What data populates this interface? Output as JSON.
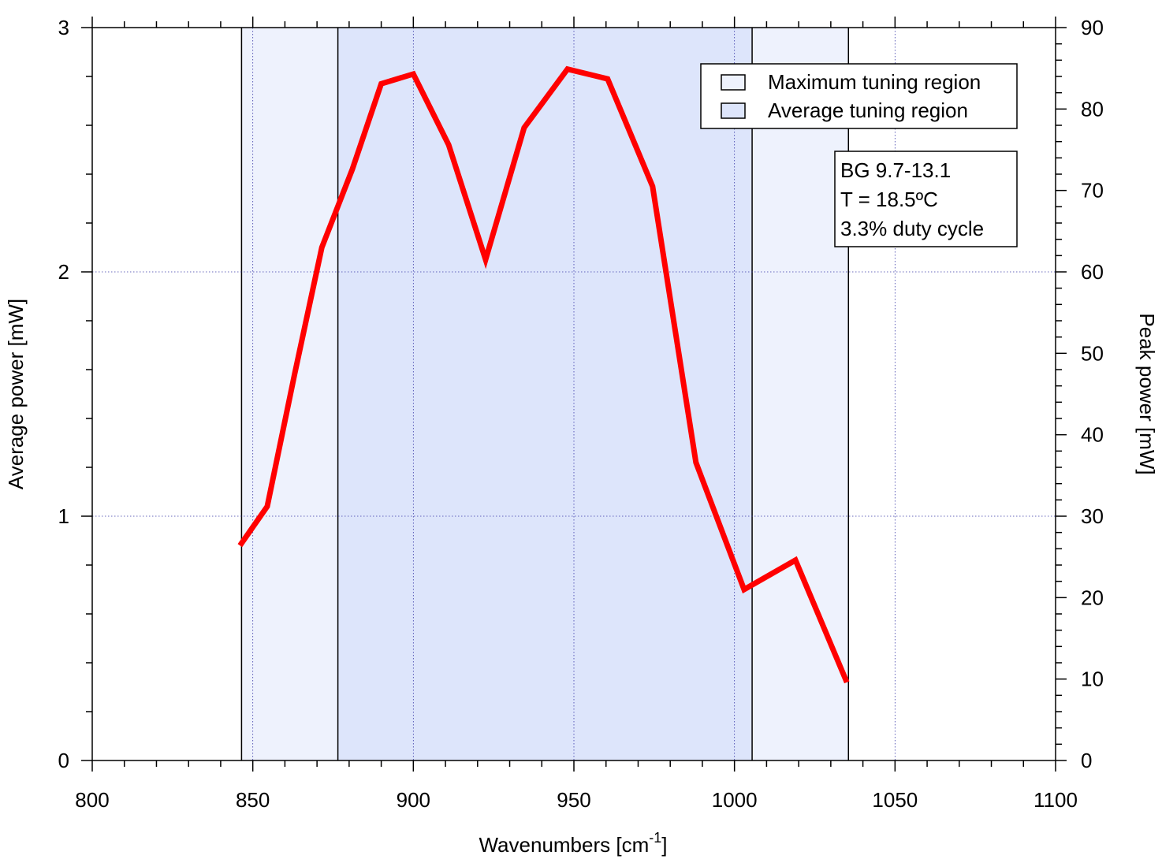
{
  "chart_data": {
    "type": "line",
    "title": "",
    "xlabel": "Wavenumbers [cm",
    "xlabel_sup": "-1",
    "xlabel_suffix": "]",
    "ylabel": "Average power [mW]",
    "y2label": "Peak power [mW]",
    "xlim": [
      800,
      1100
    ],
    "ylim": [
      0,
      3
    ],
    "y2lim": [
      0,
      90
    ],
    "x_ticks": [
      "800",
      "850",
      "900",
      "950",
      "1000",
      "1050",
      "1100"
    ],
    "y_ticks": [
      "0",
      "1",
      "2",
      "3"
    ],
    "y2_ticks": [
      "0",
      "10",
      "20",
      "30",
      "40",
      "50",
      "60",
      "70",
      "80",
      "90"
    ],
    "grid": true,
    "series": [
      {
        "color": "#ff0000",
        "x": [
          846,
          854.5,
          863,
          871.5,
          881,
          890,
          900,
          911,
          922.5,
          934.5,
          948,
          960.5,
          974.5,
          988,
          1003,
          1019,
          1035
        ],
        "y": [
          0.88,
          1.04,
          1.58,
          2.1,
          2.42,
          2.77,
          2.81,
          2.52,
          2.05,
          2.59,
          2.83,
          2.79,
          2.35,
          1.22,
          0.7,
          0.82,
          0.32
        ]
      }
    ],
    "regions": [
      {
        "name": "Maximum tuning region",
        "x": [
          846.5,
          1035.5
        ],
        "color": "#eef2fd"
      },
      {
        "name": "Average tuning region",
        "x": [
          876.5,
          1005.5
        ],
        "color": "#dde5fb"
      }
    ],
    "legend": {
      "placement": "top-right",
      "entries": [
        {
          "label": "Maximum tuning region",
          "color": "#eef2fd"
        },
        {
          "label": "Average tuning region",
          "color": "#dde5fb"
        }
      ]
    },
    "annotation": {
      "lines": [
        "BG 9.7-13.1",
        "T = 18.5ºC",
        "3.3% duty cycle"
      ]
    }
  }
}
